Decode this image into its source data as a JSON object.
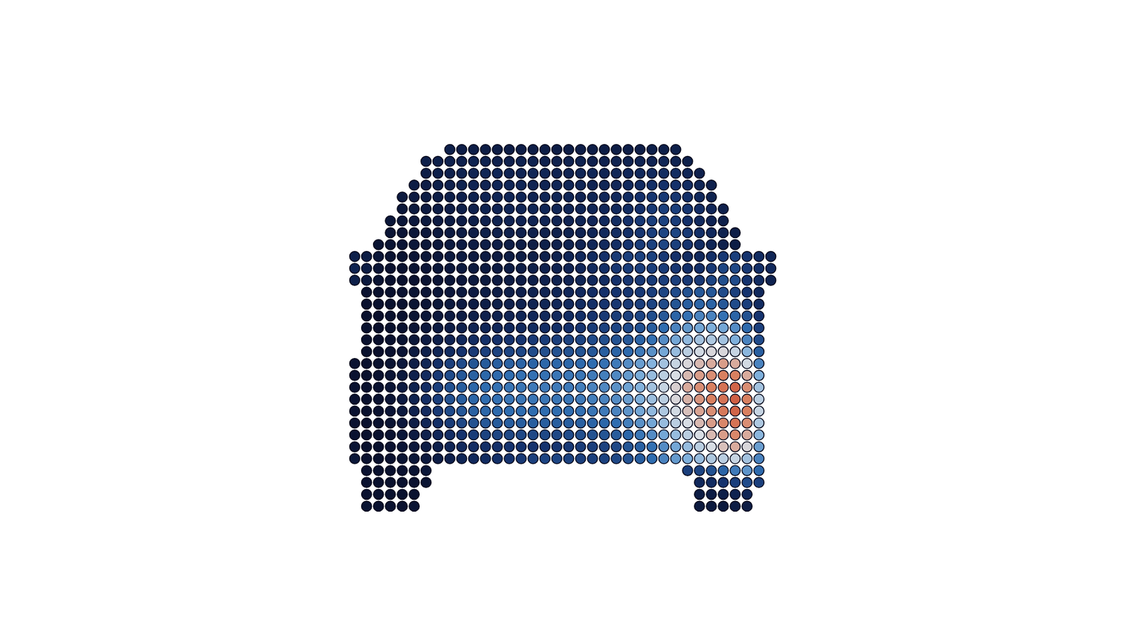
{
  "chart_data": {
    "type": "heatmap",
    "tick_labels": false,
    "clim": [
      0,
      100
    ],
    "cells": [
      [
        null,
        null,
        null,
        null,
        null,
        null,
        null,
        null,
        14,
        13,
        13,
        12,
        12,
        12,
        13,
        13,
        12,
        12,
        12,
        13,
        13,
        12,
        12,
        13,
        13,
        14,
        14,
        14,
        null,
        null,
        null,
        null,
        null,
        null,
        null,
        null
      ],
      [
        null,
        null,
        null,
        null,
        null,
        null,
        14,
        14,
        15,
        15,
        16,
        16,
        15,
        15,
        16,
        16,
        15,
        15,
        16,
        16,
        15,
        15,
        16,
        16,
        17,
        17,
        18,
        16,
        14,
        null,
        null,
        null,
        null,
        null,
        null,
        null
      ],
      [
        null,
        null,
        null,
        null,
        null,
        null,
        13,
        14,
        15,
        16,
        17,
        18,
        18,
        17,
        17,
        18,
        18,
        17,
        17,
        18,
        18,
        17,
        18,
        19,
        20,
        21,
        22,
        22,
        18,
        15,
        null,
        null,
        null,
        null,
        null,
        null
      ],
      [
        null,
        null,
        null,
        null,
        null,
        12,
        13,
        14,
        15,
        16,
        17,
        17,
        18,
        18,
        18,
        17,
        17,
        18,
        18,
        18,
        17,
        18,
        19,
        20,
        22,
        24,
        25,
        25,
        22,
        18,
        15,
        null,
        null,
        null,
        null,
        null
      ],
      [
        null,
        null,
        null,
        null,
        10,
        11,
        12,
        13,
        14,
        15,
        16,
        17,
        18,
        18,
        18,
        17,
        18,
        18,
        18,
        17,
        18,
        19,
        20,
        22,
        25,
        27,
        28,
        27,
        24,
        20,
        16,
        null,
        null,
        null,
        null,
        null
      ],
      [
        null,
        null,
        null,
        null,
        8,
        10,
        11,
        12,
        13,
        14,
        15,
        16,
        17,
        18,
        18,
        18,
        18,
        18,
        18,
        18,
        18,
        19,
        20,
        22,
        25,
        28,
        30,
        30,
        27,
        23,
        19,
        15,
        null,
        null,
        null,
        null
      ],
      [
        null,
        null,
        null,
        8,
        8,
        9,
        10,
        11,
        12,
        13,
        14,
        15,
        16,
        17,
        17,
        17,
        17,
        17,
        17,
        18,
        19,
        20,
        22,
        25,
        28,
        30,
        31,
        29,
        25,
        21,
        17,
        14,
        null,
        null,
        null,
        null
      ],
      [
        null,
        null,
        null,
        7,
        7,
        8,
        9,
        10,
        11,
        12,
        13,
        14,
        15,
        15,
        15,
        15,
        15,
        15,
        16,
        17,
        18,
        20,
        22,
        24,
        27,
        30,
        32,
        32,
        28,
        24,
        20,
        16,
        13,
        null,
        null,
        null
      ],
      [
        null,
        null,
        6,
        6,
        7,
        8,
        8,
        9,
        10,
        11,
        12,
        13,
        13,
        13,
        13,
        13,
        14,
        15,
        16,
        17,
        19,
        21,
        23,
        26,
        29,
        31,
        32,
        30,
        26,
        22,
        18,
        15,
        12,
        null,
        null,
        null
      ],
      [
        14,
        12,
        8,
        6,
        6,
        7,
        8,
        9,
        10,
        11,
        11,
        11,
        11,
        12,
        13,
        14,
        15,
        16,
        18,
        20,
        22,
        25,
        28,
        30,
        31,
        31,
        28,
        25,
        22,
        20,
        24,
        28,
        30,
        26,
        22,
        18
      ],
      [
        16,
        12,
        7,
        5,
        5,
        6,
        7,
        8,
        9,
        10,
        10,
        10,
        11,
        12,
        13,
        14,
        15,
        16,
        17,
        19,
        21,
        24,
        27,
        29,
        30,
        30,
        29,
        27,
        24,
        24,
        28,
        32,
        33,
        28,
        24,
        20
      ],
      [
        14,
        10,
        6,
        4,
        4,
        5,
        6,
        7,
        8,
        9,
        10,
        10,
        11,
        12,
        13,
        14,
        15,
        16,
        17,
        18,
        20,
        22,
        25,
        27,
        28,
        29,
        30,
        30,
        28,
        28,
        32,
        35,
        34,
        26,
        22,
        16
      ],
      [
        null,
        5,
        4,
        4,
        5,
        6,
        7,
        8,
        9,
        10,
        11,
        12,
        13,
        14,
        15,
        16,
        17,
        18,
        19,
        21,
        23,
        25,
        26,
        27,
        28,
        30,
        32,
        34,
        36,
        38,
        38,
        34,
        30,
        26,
        20,
        null
      ],
      [
        null,
        4,
        4,
        4,
        5,
        6,
        7,
        8,
        10,
        11,
        12,
        13,
        14,
        15,
        16,
        17,
        18,
        19,
        20,
        22,
        24,
        26,
        27,
        28,
        30,
        32,
        34,
        37,
        40,
        42,
        42,
        38,
        34,
        30,
        22,
        null
      ],
      [
        null,
        4,
        3,
        4,
        5,
        6,
        8,
        9,
        11,
        12,
        14,
        15,
        16,
        17,
        18,
        19,
        20,
        21,
        22,
        24,
        26,
        28,
        29,
        30,
        32,
        35,
        38,
        42,
        46,
        50,
        50,
        46,
        42,
        36,
        26,
        null
      ],
      [
        null,
        4,
        3,
        4,
        5,
        7,
        9,
        11,
        13,
        15,
        17,
        18,
        19,
        20,
        21,
        22,
        23,
        24,
        25,
        27,
        29,
        31,
        32,
        34,
        36,
        40,
        45,
        50,
        55,
        58,
        60,
        58,
        52,
        44,
        30,
        null
      ],
      [
        null,
        4,
        3,
        4,
        6,
        8,
        11,
        14,
        17,
        20,
        22,
        24,
        25,
        26,
        27,
        28,
        29,
        30,
        31,
        32,
        34,
        35,
        36,
        38,
        42,
        46,
        52,
        58,
        63,
        66,
        68,
        66,
        60,
        50,
        34,
        null
      ],
      [
        null,
        4,
        3,
        5,
        7,
        10,
        14,
        18,
        22,
        26,
        28,
        30,
        31,
        32,
        33,
        34,
        35,
        36,
        36,
        37,
        38,
        40,
        42,
        44,
        48,
        53,
        58,
        64,
        70,
        74,
        76,
        76,
        72,
        62,
        40,
        null
      ],
      [
        5,
        4,
        4,
        6,
        9,
        13,
        18,
        24,
        30,
        34,
        37,
        39,
        40,
        41,
        42,
        42,
        43,
        43,
        43,
        44,
        45,
        46,
        48,
        52,
        56,
        61,
        66,
        72,
        76,
        80,
        82,
        84,
        82,
        74,
        50,
        null
      ],
      [
        5,
        4,
        5,
        7,
        10,
        15,
        21,
        28,
        34,
        38,
        41,
        43,
        44,
        45,
        46,
        46,
        46,
        47,
        47,
        47,
        48,
        49,
        51,
        55,
        59,
        64,
        70,
        75,
        80,
        84,
        86,
        88,
        88,
        82,
        60,
        null
      ],
      [
        5,
        4,
        5,
        7,
        11,
        16,
        23,
        30,
        36,
        40,
        43,
        45,
        46,
        47,
        47,
        48,
        48,
        48,
        48,
        49,
        50,
        51,
        53,
        57,
        61,
        66,
        72,
        77,
        82,
        86,
        88,
        90,
        92,
        86,
        66,
        null
      ],
      [
        5,
        4,
        5,
        7,
        11,
        16,
        23,
        30,
        36,
        40,
        43,
        45,
        46,
        47,
        47,
        47,
        47,
        47,
        47,
        48,
        49,
        50,
        52,
        56,
        60,
        65,
        70,
        76,
        81,
        85,
        88,
        90,
        93,
        88,
        70,
        null
      ],
      [
        5,
        4,
        5,
        7,
        10,
        15,
        21,
        28,
        34,
        38,
        41,
        43,
        44,
        45,
        45,
        45,
        45,
        45,
        45,
        46,
        47,
        48,
        50,
        54,
        58,
        63,
        68,
        74,
        79,
        83,
        86,
        89,
        92,
        88,
        72,
        null
      ],
      [
        5,
        4,
        4,
        6,
        9,
        13,
        18,
        24,
        29,
        33,
        36,
        38,
        39,
        40,
        40,
        40,
        40,
        40,
        40,
        41,
        42,
        43,
        45,
        49,
        53,
        58,
        64,
        70,
        75,
        80,
        84,
        87,
        90,
        86,
        68,
        null
      ],
      [
        5,
        4,
        4,
        5,
        8,
        11,
        15,
        19,
        23,
        26,
        29,
        31,
        32,
        33,
        33,
        33,
        33,
        33,
        34,
        35,
        36,
        37,
        39,
        43,
        47,
        52,
        58,
        64,
        70,
        75,
        80,
        84,
        87,
        82,
        62,
        null
      ],
      [
        6,
        4,
        4,
        5,
        7,
        9,
        12,
        15,
        18,
        21,
        23,
        24,
        25,
        26,
        26,
        26,
        26,
        27,
        28,
        29,
        30,
        31,
        33,
        37,
        41,
        46,
        52,
        58,
        64,
        70,
        75,
        79,
        82,
        76,
        56,
        null
      ],
      [
        8,
        5,
        4,
        5,
        6,
        8,
        10,
        12,
        15,
        18,
        20,
        22,
        24,
        26,
        28,
        30,
        32,
        32,
        31,
        30,
        30,
        31,
        33,
        36,
        40,
        45,
        50,
        55,
        60,
        64,
        68,
        70,
        72,
        66,
        50,
        null
      ],
      [
        null,
        5,
        4,
        4,
        5,
        6,
        8,
        null,
        null,
        null,
        null,
        null,
        null,
        null,
        null,
        null,
        null,
        null,
        null,
        null,
        null,
        null,
        null,
        null,
        null,
        null,
        null,
        null,
        30,
        32,
        36,
        42,
        48,
        54,
        44,
        null
      ],
      [
        null,
        5,
        4,
        4,
        4,
        5,
        6,
        null,
        null,
        null,
        null,
        null,
        null,
        null,
        null,
        null,
        null,
        null,
        null,
        null,
        null,
        null,
        null,
        null,
        null,
        null,
        null,
        null,
        null,
        20,
        22,
        26,
        30,
        34,
        30,
        null
      ],
      [
        null,
        5,
        4,
        4,
        4,
        5,
        null,
        null,
        null,
        null,
        null,
        null,
        null,
        null,
        null,
        null,
        null,
        null,
        null,
        null,
        null,
        null,
        null,
        null,
        null,
        null,
        null,
        null,
        null,
        12,
        12,
        14,
        16,
        18,
        null,
        null
      ],
      [
        null,
        6,
        5,
        5,
        5,
        6,
        null,
        null,
        null,
        null,
        null,
        null,
        null,
        null,
        null,
        null,
        null,
        null,
        null,
        null,
        null,
        null,
        null,
        null,
        null,
        null,
        null,
        null,
        null,
        10,
        10,
        10,
        12,
        12,
        null,
        null
      ]
    ]
  }
}
